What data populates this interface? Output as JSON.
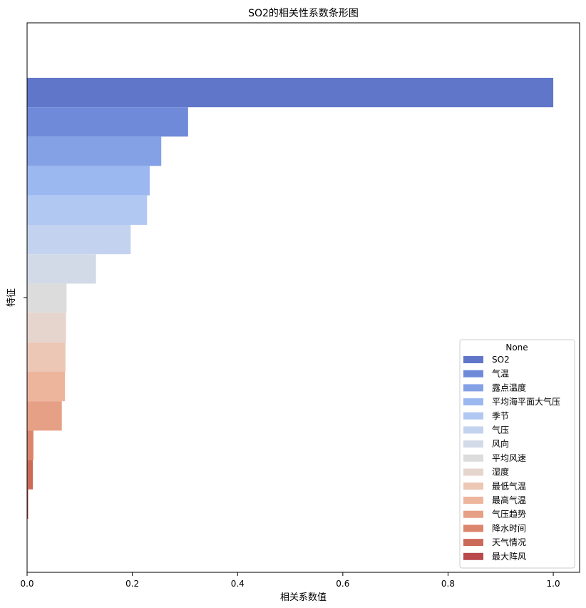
{
  "chart_data": {
    "type": "bar",
    "orientation": "horizontal",
    "title": "SO2的相关性系数条形图",
    "xlabel": "相关系数值",
    "ylabel": "特征",
    "xlim": [
      0,
      1.05
    ],
    "xticks": [
      "0.0",
      "0.2",
      "0.4",
      "0.6",
      "0.8",
      "1.0"
    ],
    "grid": false,
    "legend_title": "None",
    "legend_position": "lower-right",
    "series": [
      {
        "name": "SO2",
        "value": 1.0,
        "color": "#5f76c9"
      },
      {
        "name": "气温",
        "value": 0.306,
        "color": "#6f8ad8"
      },
      {
        "name": "露点温度",
        "value": 0.255,
        "color": "#84a1e6"
      },
      {
        "name": "平均海平面大气压",
        "value": 0.233,
        "color": "#9cb8f0"
      },
      {
        "name": "季节",
        "value": 0.228,
        "color": "#b0c8f2"
      },
      {
        "name": "气压",
        "value": 0.197,
        "color": "#c3d3ef"
      },
      {
        "name": "风向",
        "value": 0.131,
        "color": "#d2dae7"
      },
      {
        "name": "平均风速",
        "value": 0.075,
        "color": "#dcdcdc"
      },
      {
        "name": "湿度",
        "value": 0.074,
        "color": "#e6d5cc"
      },
      {
        "name": "最低气温",
        "value": 0.073,
        "color": "#ecc7b6"
      },
      {
        "name": "最高气温",
        "value": 0.072,
        "color": "#eeb59d"
      },
      {
        "name": "气压趋势",
        "value": 0.066,
        "color": "#e6a085"
      },
      {
        "name": "降水时间",
        "value": 0.012,
        "color": "#dc846c"
      },
      {
        "name": "天气情况",
        "value": 0.011,
        "color": "#cc6a59"
      },
      {
        "name": "最大阵风",
        "value": 0.002,
        "color": "#b9484a"
      }
    ]
  }
}
